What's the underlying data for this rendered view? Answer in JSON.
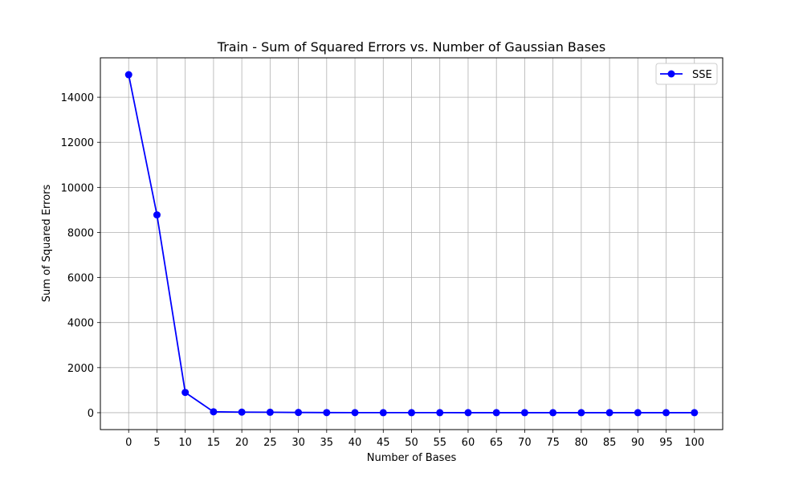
{
  "chart_data": {
    "type": "line",
    "title": "Train - Sum of Squared Errors vs. Number of Gaussian Bases",
    "xlabel": "Number of Bases",
    "ylabel": "Sum of Squared Errors",
    "xlim": [
      -5,
      105
    ],
    "ylim": [
      -750,
      15750
    ],
    "xticks": [
      0,
      5,
      10,
      15,
      20,
      25,
      30,
      35,
      40,
      45,
      50,
      55,
      60,
      65,
      70,
      75,
      80,
      85,
      90,
      95,
      100
    ],
    "xtick_labels": [
      "0",
      "5",
      "10",
      "15",
      "20",
      "25",
      "30",
      "35",
      "40",
      "45",
      "50",
      "55",
      "60",
      "65",
      "70",
      "75",
      "80",
      "85",
      "90",
      "95",
      "100"
    ],
    "yticks": [
      0,
      2000,
      4000,
      6000,
      8000,
      10000,
      12000,
      14000
    ],
    "ytick_labels": [
      "0",
      "2000",
      "4000",
      "6000",
      "8000",
      "10000",
      "12000",
      "14000"
    ],
    "grid": true,
    "legend": {
      "position": "top-right",
      "entries": [
        "SSE"
      ]
    },
    "series": [
      {
        "name": "SSE",
        "color": "#0000ff",
        "marker": "circle",
        "x": [
          0,
          5,
          10,
          15,
          20,
          25,
          30,
          35,
          40,
          45,
          50,
          55,
          60,
          65,
          70,
          75,
          80,
          85,
          90,
          95,
          100
        ],
        "y": [
          15000,
          8780,
          900,
          40,
          25,
          20,
          10,
          5,
          3,
          2,
          2,
          2,
          1,
          1,
          1,
          1,
          1,
          1,
          1,
          1,
          1
        ]
      }
    ]
  }
}
